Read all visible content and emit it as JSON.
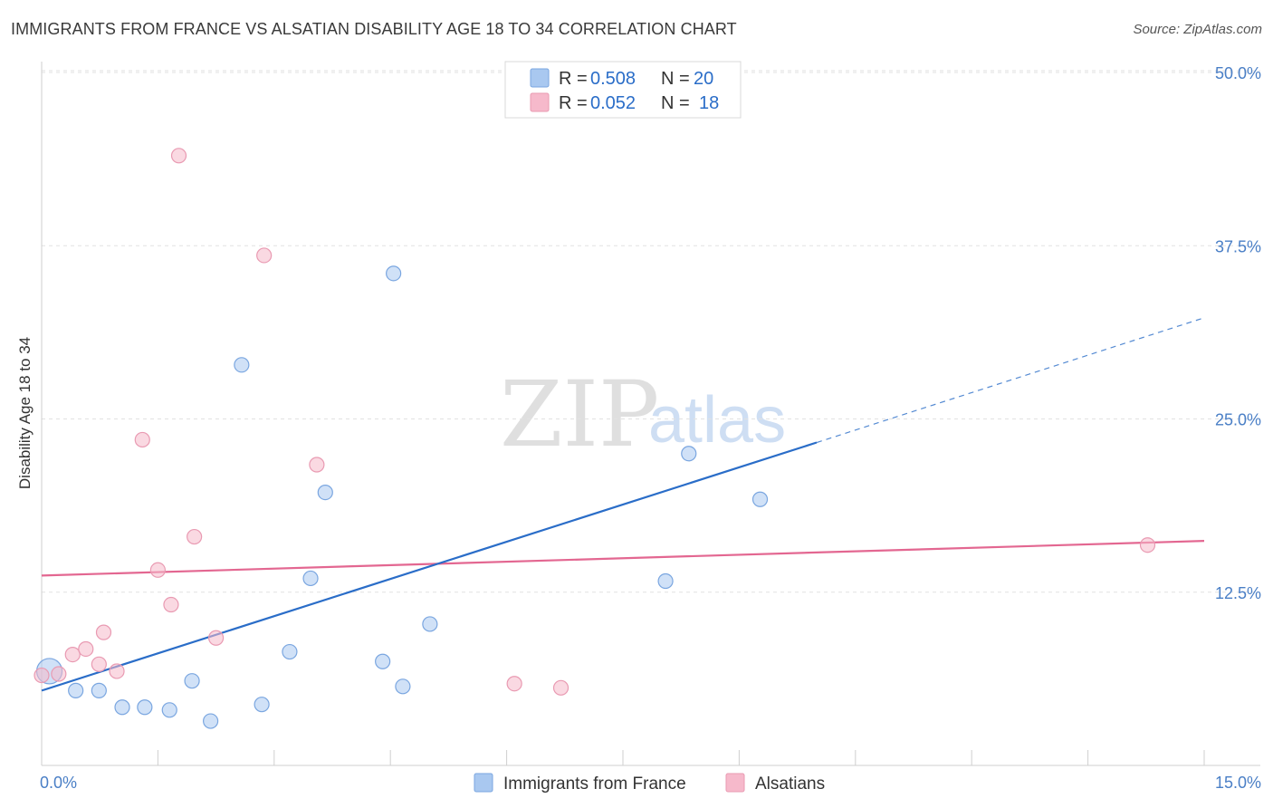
{
  "header": {
    "title": "IMMIGRANTS FROM FRANCE VS ALSATIAN DISABILITY AGE 18 TO 34 CORRELATION CHART",
    "source": "Source: ZipAtlas.com"
  },
  "legend": {
    "rows": [
      {
        "r_label": "R = ",
        "r_value": "0.508",
        "n_label": "N = ",
        "n_value": "20",
        "color": "#a9c8f0"
      },
      {
        "r_label": "R = ",
        "r_value": "0.052",
        "n_label": "N = ",
        "n_value": "18",
        "color": "#f6b9cb"
      }
    ]
  },
  "watermark": {
    "zip": "ZIP",
    "atlas": "atlas"
  },
  "colors": {
    "blue_point": "#a9c8f0",
    "blue_line": "#2a6dc8",
    "pink_point": "#f6b9cb",
    "pink_line": "#e36791"
  },
  "chart_data": {
    "type": "scatter",
    "title": "IMMIGRANTS FROM FRANCE VS ALSATIAN DISABILITY AGE 18 TO 34 CORRELATION CHART",
    "xlabel": "",
    "ylabel": "Disability Age 18 to 34",
    "xlim": [
      0,
      15
    ],
    "ylim": [
      0,
      50
    ],
    "x_ticks": [
      {
        "value": 0,
        "label": "0.0%"
      },
      {
        "value": 15,
        "label": "15.0%"
      }
    ],
    "y_ticks": [
      {
        "value": 12.5,
        "label": "12.5%"
      },
      {
        "value": 25,
        "label": "25.0%"
      },
      {
        "value": 37.5,
        "label": "37.5%"
      },
      {
        "value": 50,
        "label": "50.0%"
      }
    ],
    "grid": true,
    "legend_position": "top-center",
    "series": [
      {
        "name": "Immigrants from France",
        "color": "#a9c8f0",
        "points": [
          {
            "x": 0.1,
            "y": 6.8,
            "big": true
          },
          {
            "x": 0.44,
            "y": 5.4
          },
          {
            "x": 0.74,
            "y": 5.4
          },
          {
            "x": 1.04,
            "y": 4.2
          },
          {
            "x": 1.33,
            "y": 4.2
          },
          {
            "x": 1.65,
            "y": 4.0
          },
          {
            "x": 1.94,
            "y": 6.1
          },
          {
            "x": 2.18,
            "y": 3.2
          },
          {
            "x": 2.58,
            "y": 28.9
          },
          {
            "x": 2.84,
            "y": 4.4
          },
          {
            "x": 3.2,
            "y": 8.2
          },
          {
            "x": 3.47,
            "y": 13.5
          },
          {
            "x": 3.66,
            "y": 19.7
          },
          {
            "x": 4.4,
            "y": 7.5
          },
          {
            "x": 4.66,
            "y": 5.7
          },
          {
            "x": 4.54,
            "y": 35.5
          },
          {
            "x": 5.01,
            "y": 10.2
          },
          {
            "x": 8.05,
            "y": 13.3
          },
          {
            "x": 8.35,
            "y": 22.5
          },
          {
            "x": 9.27,
            "y": 19.2
          }
        ],
        "trend": {
          "x1": 0.0,
          "y1": 5.4,
          "x2": 10.0,
          "y2": 23.3,
          "dash_to_x": 15.0,
          "dash_to_y": 32.3
        }
      },
      {
        "name": "Alsatians",
        "color": "#f6b9cb",
        "points": [
          {
            "x": 0.0,
            "y": 6.5
          },
          {
            "x": 0.22,
            "y": 6.6
          },
          {
            "x": 0.4,
            "y": 8.0
          },
          {
            "x": 0.57,
            "y": 8.4
          },
          {
            "x": 0.74,
            "y": 7.3
          },
          {
            "x": 0.8,
            "y": 9.6
          },
          {
            "x": 0.97,
            "y": 6.8
          },
          {
            "x": 1.3,
            "y": 23.5
          },
          {
            "x": 1.5,
            "y": 14.1
          },
          {
            "x": 1.67,
            "y": 11.6
          },
          {
            "x": 1.77,
            "y": 44.0
          },
          {
            "x": 1.97,
            "y": 16.5
          },
          {
            "x": 2.25,
            "y": 9.2
          },
          {
            "x": 2.87,
            "y": 36.8
          },
          {
            "x": 3.55,
            "y": 21.7
          },
          {
            "x": 6.1,
            "y": 5.9
          },
          {
            "x": 6.7,
            "y": 5.6
          },
          {
            "x": 14.27,
            "y": 15.9
          }
        ],
        "trend": {
          "x1": 0.0,
          "y1": 13.7,
          "x2": 15.0,
          "y2": 16.2
        }
      }
    ]
  }
}
